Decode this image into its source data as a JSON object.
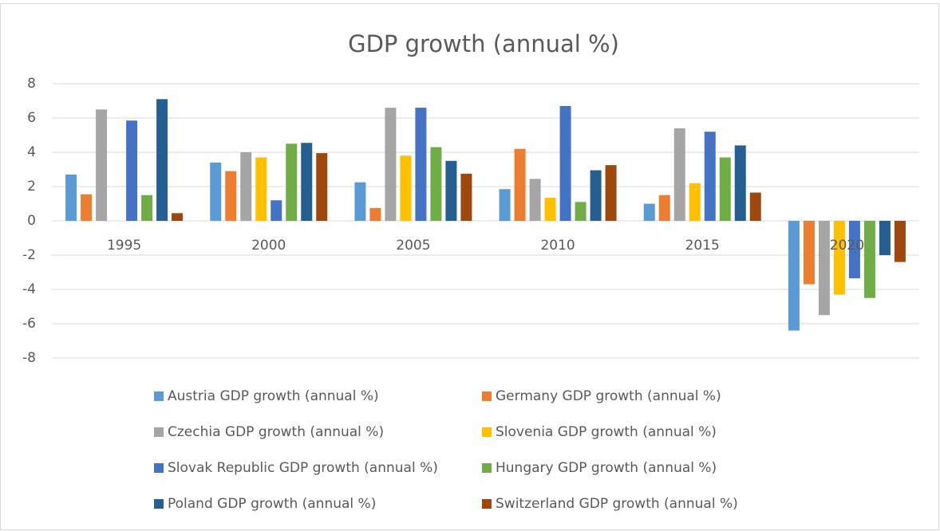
{
  "chart_data": {
    "type": "bar",
    "title": "GDP growth (annual %)",
    "categories": [
      "1995",
      "2000",
      "2005",
      "2010",
      "2015",
      "2020"
    ],
    "series": [
      {
        "name": "Austria GDP growth (annual %)",
        "color": "#5b9bd5",
        "values": [
          2.7,
          3.4,
          2.25,
          1.85,
          1.0,
          -6.4
        ]
      },
      {
        "name": "Germany GDP growth (annual %)",
        "color": "#ed7d31",
        "values": [
          1.55,
          2.9,
          0.75,
          4.2,
          1.5,
          -3.7
        ]
      },
      {
        "name": "Czechia GDP growth (annual %)",
        "color": "#a5a5a5",
        "values": [
          6.5,
          4.0,
          6.6,
          2.45,
          5.4,
          -5.5
        ]
      },
      {
        "name": "Slovenia GDP growth (annual %)",
        "color": "#ffc000",
        "values": [
          null,
          3.7,
          3.8,
          1.35,
          2.2,
          -4.3
        ]
      },
      {
        "name": "Slovak Republic GDP growth (annual %)",
        "color": "#4472c4",
        "values": [
          5.85,
          1.2,
          6.6,
          6.7,
          5.2,
          -3.35
        ]
      },
      {
        "name": "Hungary GDP growth (annual %)",
        "color": "#70ad47",
        "values": [
          1.5,
          4.5,
          4.3,
          1.1,
          3.7,
          -4.5
        ]
      },
      {
        "name": "Poland GDP growth (annual %)",
        "color": "#255e91",
        "values": [
          7.1,
          4.55,
          3.5,
          2.95,
          4.4,
          -2.0
        ]
      },
      {
        "name": "Switzerland GDP growth (annual %)",
        "color": "#9e480e",
        "values": [
          0.45,
          3.95,
          2.75,
          3.25,
          1.65,
          -2.4
        ]
      }
    ],
    "ylim": [
      -8,
      8
    ],
    "yticks": [
      -8,
      -6,
      -4,
      -2,
      0,
      2,
      4,
      6,
      8
    ],
    "grid": true,
    "legend": "bottom"
  }
}
